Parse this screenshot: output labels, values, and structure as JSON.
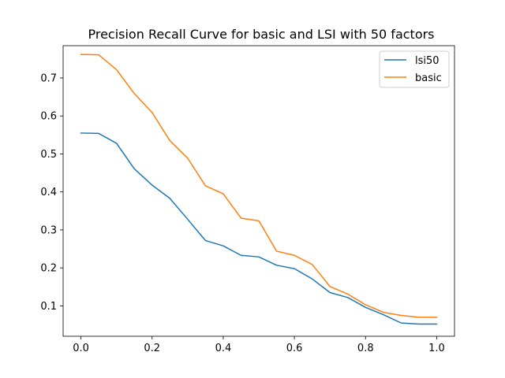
{
  "chart_data": {
    "type": "line",
    "title": "Precision Recall Curve for basic and LSI with 50 factors",
    "xlabel": "",
    "ylabel": "",
    "xlim": [
      -0.05,
      1.05
    ],
    "ylim": [
      0.02,
      0.785
    ],
    "x_ticks": [
      0.0,
      0.2,
      0.4,
      0.6,
      0.8,
      1.0
    ],
    "x_tick_labels": [
      "0.0",
      "0.2",
      "0.4",
      "0.6",
      "0.8",
      "1.0"
    ],
    "y_ticks": [
      0.1,
      0.2,
      0.3,
      0.4,
      0.5,
      0.6,
      0.7
    ],
    "y_tick_labels": [
      "0.1",
      "0.2",
      "0.3",
      "0.4",
      "0.5",
      "0.6",
      "0.7"
    ],
    "grid": false,
    "legend": "top-right",
    "x": [
      0.0,
      0.05,
      0.1,
      0.15,
      0.2,
      0.25,
      0.3,
      0.35,
      0.4,
      0.45,
      0.5,
      0.55,
      0.6,
      0.65,
      0.7,
      0.75,
      0.8,
      0.85,
      0.9,
      0.95,
      1.0
    ],
    "series": [
      {
        "name": "lsi50",
        "color": "#1f77b4",
        "values": [
          0.555,
          0.554,
          0.528,
          0.461,
          0.418,
          0.383,
          0.328,
          0.272,
          0.258,
          0.233,
          0.229,
          0.207,
          0.198,
          0.171,
          0.135,
          0.122,
          0.096,
          0.077,
          0.055,
          0.052,
          0.052
        ]
      },
      {
        "name": "basic",
        "color": "#ff7f0e",
        "values": [
          0.762,
          0.761,
          0.722,
          0.659,
          0.609,
          0.535,
          0.489,
          0.416,
          0.395,
          0.331,
          0.324,
          0.244,
          0.233,
          0.209,
          0.151,
          0.131,
          0.103,
          0.083,
          0.075,
          0.07,
          0.07
        ]
      }
    ]
  }
}
